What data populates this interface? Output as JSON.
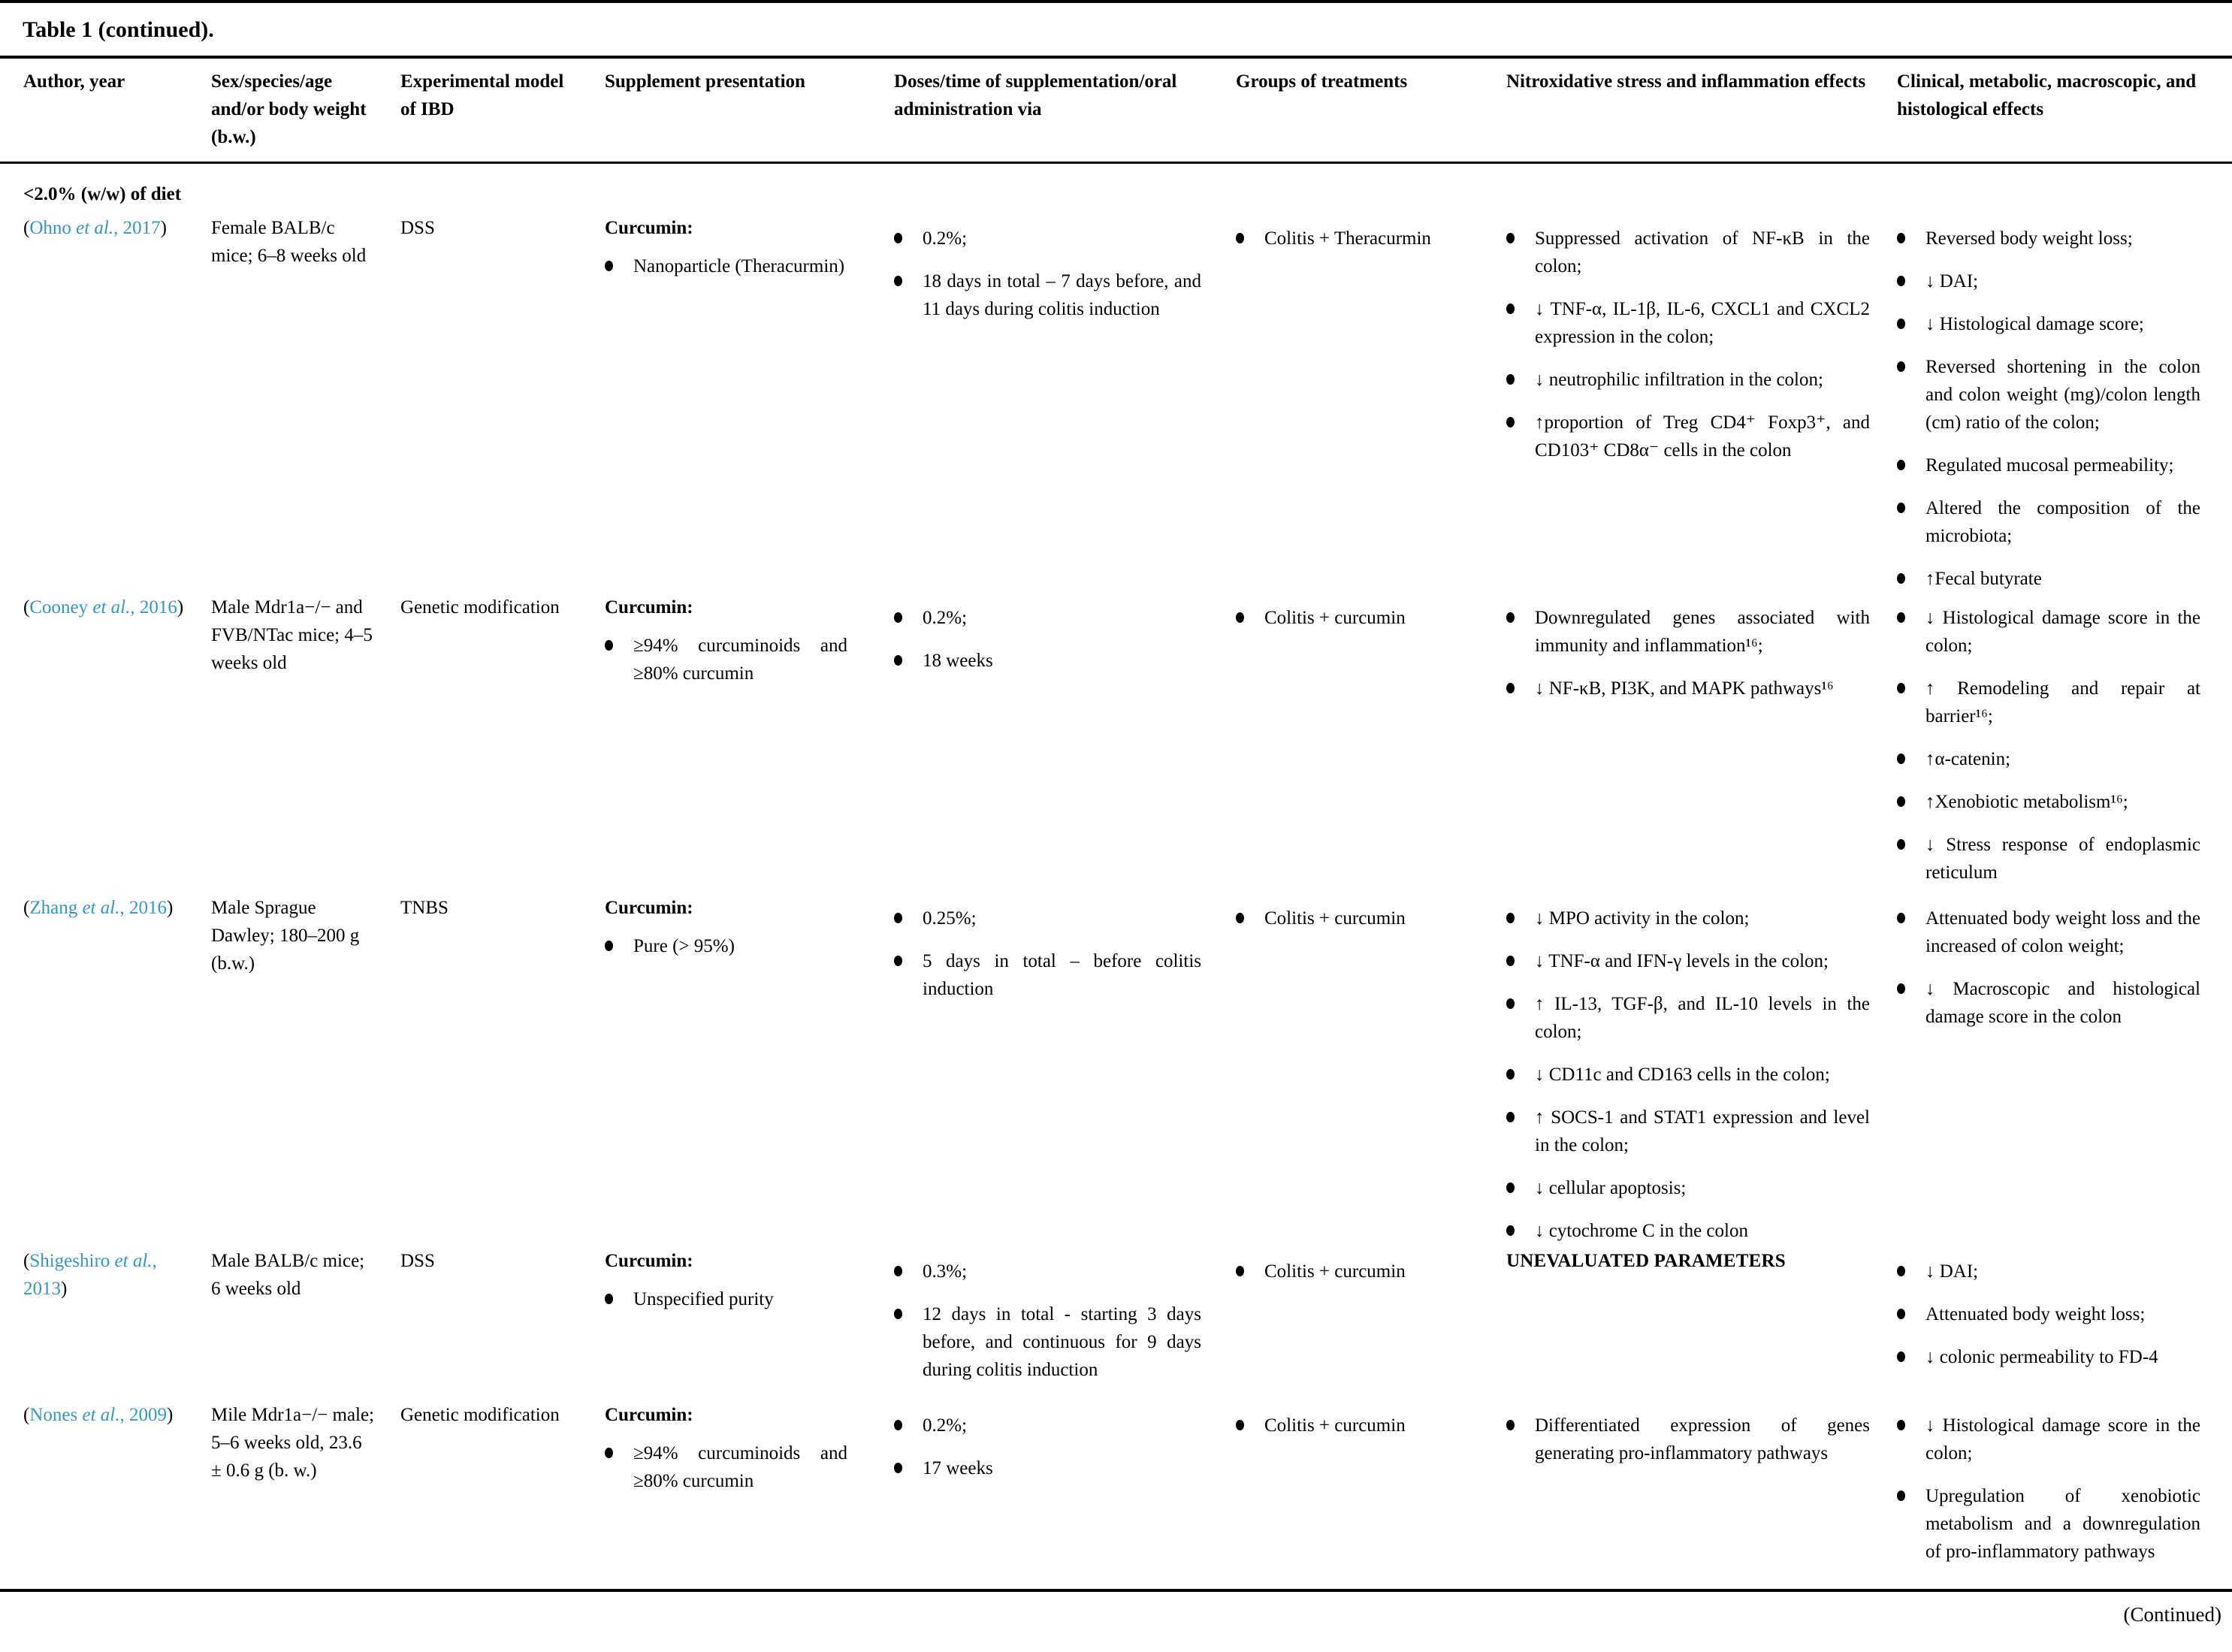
{
  "colors": {
    "citation_link": "#3596c8",
    "text": "#000000",
    "background": "#ffffff"
  },
  "table": {
    "title": "Table 1 (continued).",
    "continued_note": "(Continued)",
    "section_label": "<2.0% (w/w) of diet",
    "columns": [
      "Author, year",
      "Sex/species/age and/or body weight (b.w.)",
      "Experimental model of IBD",
      "Supplement presentation",
      "Doses/time of supplementation/oral administration via",
      "Groups of treatments",
      "Nitroxidative stress and inflammation effects",
      "Clinical, metabolic, macroscopic, and histological effects"
    ],
    "rows": [
      {
        "author": {
          "open": "(",
          "name": "Ohno ",
          "etal": "et al.",
          "rest": ", 2017",
          "close": ")"
        },
        "subject": "Female BALB/c mice; 6–8 weeks old",
        "model": "DSS",
        "supplement_heading": "Curcumin:",
        "supplement_items": [
          "Nanoparticle (Theracurmin)"
        ],
        "doses": [
          "0.2%;",
          "18 days in total – 7 days before, and 11 days during colitis induction"
        ],
        "groups": [
          "Colitis + Theracurmin"
        ],
        "stress_items": [
          "Suppressed activation of NF-κB in the colon;",
          "↓ TNF-α, IL-1β, IL-6, CXCL1 and CXCL2 expression in the colon;",
          "↓ neutrophilic infiltration in the colon;",
          "↑proportion of Treg CD4⁺ Foxp3⁺, and CD103⁺ CD8α⁻ cells in the colon"
        ],
        "clinical_items": [
          "Reversed body weight loss;",
          "↓ DAI;",
          "↓ Histological damage score;",
          "Reversed shortening in the colon and colon weight (mg)/colon length (cm) ratio of the colon;",
          "Regulated mucosal permeability;",
          "Altered the composition of the microbiota;",
          "↑Fecal butyrate"
        ]
      },
      {
        "author": {
          "open": "(",
          "name": "Cooney ",
          "etal": "et al.",
          "rest": ", 2016",
          "close": ")"
        },
        "subject": "Male Mdr1a−/− and FVB/NTac mice; 4–5 weeks old",
        "model": "Genetic modification",
        "supplement_heading": "Curcumin:",
        "supplement_items": [
          "≥94% curcuminoids and ≥80% curcumin"
        ],
        "doses": [
          "0.2%;",
          "18 weeks"
        ],
        "groups": [
          "Colitis + curcumin"
        ],
        "stress_items": [
          "Downregulated genes associated with immunity and inflammation¹⁶;",
          "↓ NF-κB, PI3K, and MAPK pathways¹⁶"
        ],
        "clinical_items": [
          "↓ Histological damage score in the colon;",
          "↑ Remodeling and repair at barrier¹⁶;",
          "↑α-catenin;",
          "↑Xenobiotic metabolism¹⁶;",
          "↓ Stress response of endoplasmic reticulum"
        ]
      },
      {
        "author": {
          "open": "(",
          "name": "Zhang ",
          "etal": "et al.",
          "rest": ", 2016",
          "close": ")"
        },
        "subject": "Male Sprague Dawley; 180–200 g (b.w.)",
        "model": "TNBS",
        "supplement_heading": "Curcumin:",
        "supplement_items": [
          "Pure (> 95%)"
        ],
        "doses": [
          "0.25%;",
          "5 days in total – before colitis induction"
        ],
        "groups": [
          "Colitis + curcumin"
        ],
        "stress_items": [
          "↓ MPO activity in the colon;",
          "↓ TNF-α and IFN-γ levels in the colon;",
          "↑ IL-13, TGF-β, and IL-10 levels in the colon;",
          "↓ CD11c and CD163 cells in the colon;",
          "↑ SOCS-1 and STAT1 expression and level in the colon;",
          "↓ cellular apoptosis;",
          "↓ cytochrome C in the colon"
        ],
        "clinical_items": [
          "Attenuated body weight loss and the increased of colon weight;",
          "↓ Macroscopic and histological damage score in the colon"
        ]
      },
      {
        "author": {
          "open": "(",
          "name": "Shigeshiro ",
          "etal": "et al.",
          "rest": ", 2013",
          "close": ")"
        },
        "subject": "Male BALB/c mice; 6 weeks old",
        "model": "DSS",
        "supplement_heading": "Curcumin:",
        "supplement_items": [
          "Unspecified purity"
        ],
        "doses": [
          "0.3%;",
          "12 days in total - starting 3 days before, and continuous for 9 days during colitis induction"
        ],
        "groups": [
          "Colitis + curcumin"
        ],
        "stress_heading": "UNEVALUATED PARAMETERS",
        "stress_items": [],
        "clinical_items": [
          "↓ DAI;",
          "Attenuated body weight loss;",
          "↓ colonic permeability to FD-4"
        ]
      },
      {
        "author": {
          "open": "(",
          "name": "Nones ",
          "etal": "et al.",
          "rest": ", 2009",
          "close": ")"
        },
        "subject": "Mile Mdr1a−/− male; 5–6 weeks old, 23.6 ± 0.6 g (b. w.)",
        "model": "Genetic modification",
        "supplement_heading": "Curcumin:",
        "supplement_items": [
          "≥94% curcuminoids and ≥80% curcumin"
        ],
        "doses": [
          "0.2%;",
          "17 weeks"
        ],
        "groups": [
          "Colitis + curcumin"
        ],
        "stress_items": [
          "Differentiated expression of genes generating pro-inflammatory pathways"
        ],
        "clinical_items": [
          "↓ Histological damage score in the colon;",
          "Upregulation of xenobiotic metabolism and a downregulation of pro-inflammatory pathways"
        ]
      }
    ]
  }
}
